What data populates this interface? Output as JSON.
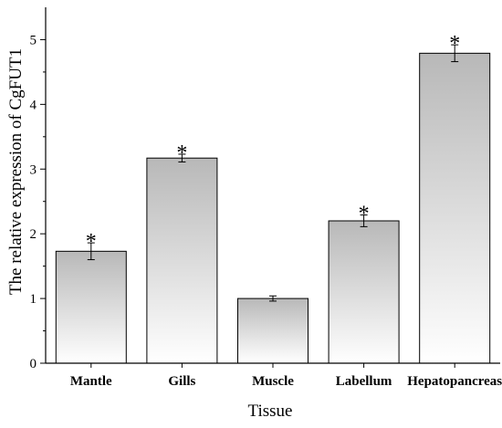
{
  "chart_data": {
    "type": "bar",
    "categories": [
      "Mantle",
      "Gills",
      "Muscle",
      "Labellum",
      "Hepatopancreas"
    ],
    "values": [
      1.73,
      3.17,
      1.0,
      2.2,
      4.79
    ],
    "error": [
      0.13,
      0.06,
      0.04,
      0.09,
      0.13
    ],
    "significance": [
      "*",
      "*",
      "",
      "*",
      "*"
    ],
    "xlabel": "Tissue",
    "ylabel": "The relative expression of CgFUT1",
    "ylim": [
      0,
      5.5
    ],
    "yticks": [
      "0",
      "1",
      "2",
      "3",
      "4",
      "5"
    ],
    "ytick_values": [
      0,
      1,
      2,
      3,
      4,
      5
    ],
    "bar_fill": {
      "top": "#b8b8b8",
      "bottom": "#ffffff"
    },
    "grid": false
  }
}
